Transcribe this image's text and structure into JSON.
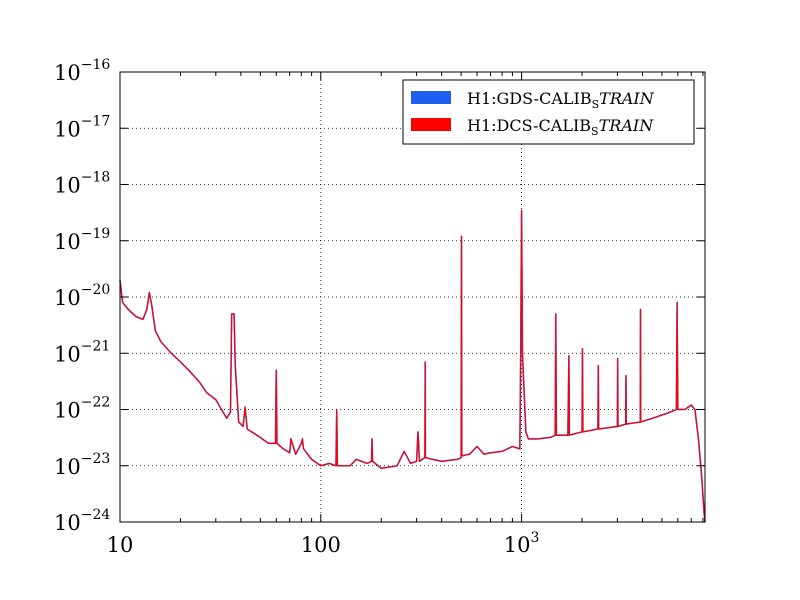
{
  "chart_data": {
    "type": "line",
    "title": "",
    "xlabel": "",
    "ylabel": "",
    "x_scale": "log",
    "y_scale": "log",
    "xlim": [
      10,
      8192
    ],
    "ylim": [
      1e-24,
      1e-16
    ],
    "grid": true,
    "legend_position": "top-right",
    "colors": {
      "gds": "#1f5ff2",
      "dcs": "#ff0000"
    },
    "x_ticks": [
      {
        "value": 10,
        "label": "10",
        "exp": ""
      },
      {
        "value": 100,
        "label": "100",
        "exp": ""
      },
      {
        "value": 1000,
        "label": "10",
        "exp": "3"
      }
    ],
    "y_ticks": [
      {
        "value": 1e-24,
        "label": "10",
        "exp": "−24"
      },
      {
        "value": 1e-23,
        "label": "10",
        "exp": "−23"
      },
      {
        "value": 1e-22,
        "label": "10",
        "exp": "−22"
      },
      {
        "value": 1e-21,
        "label": "10",
        "exp": "−21"
      },
      {
        "value": 1e-20,
        "label": "10",
        "exp": "−20"
      },
      {
        "value": 1e-19,
        "label": "10",
        "exp": "−19"
      },
      {
        "value": 1e-18,
        "label": "10",
        "exp": "−18"
      },
      {
        "value": 1e-17,
        "label": "10",
        "exp": "−17"
      },
      {
        "value": 1e-16,
        "label": "10",
        "exp": "−16"
      }
    ],
    "series": [
      {
        "name": "H1:GDS-CALIB_STRAIN",
        "legend_base": "H1:GDS-CALIB",
        "legend_sub": "S",
        "legend_ital": "TRAIN",
        "color": "#1f5ff2",
        "points": [
          [
            10,
            2e-20
          ],
          [
            10.3,
            8e-21
          ],
          [
            11,
            6e-21
          ],
          [
            12,
            4.5e-21
          ],
          [
            13,
            4e-21
          ],
          [
            13.6,
            6e-21
          ],
          [
            14,
            1.2e-20
          ],
          [
            14.4,
            7e-21
          ],
          [
            15,
            2.5e-21
          ],
          [
            16,
            1.6e-21
          ],
          [
            18,
            1e-21
          ],
          [
            20,
            7e-22
          ],
          [
            22,
            5e-22
          ],
          [
            25,
            3e-22
          ],
          [
            27,
            2e-22
          ],
          [
            30,
            1.5e-22
          ],
          [
            32,
            1e-22
          ],
          [
            34,
            7e-23
          ],
          [
            35.5,
            9e-23
          ],
          [
            36,
            5e-21
          ],
          [
            37,
            5e-21
          ],
          [
            37.5,
            6e-22
          ],
          [
            39,
            6e-23
          ],
          [
            41,
            5e-23
          ],
          [
            42,
            1.1e-22
          ],
          [
            43,
            4.5e-23
          ],
          [
            48,
            3.5e-23
          ],
          [
            55,
            2.5e-23
          ],
          [
            59.5,
            2.5e-23
          ],
          [
            60,
            5e-22
          ],
          [
            60.5,
            2.5e-23
          ],
          [
            65,
            2e-23
          ],
          [
            70,
            1.7e-23
          ],
          [
            71,
            3e-23
          ],
          [
            75,
            1.6e-23
          ],
          [
            80,
            2.5e-23
          ],
          [
            81,
            3e-23
          ],
          [
            82,
            2e-23
          ],
          [
            90,
            1.3e-23
          ],
          [
            100,
            1e-23
          ],
          [
            110,
            1.1e-23
          ],
          [
            119,
            1e-23
          ],
          [
            120,
            1e-22
          ],
          [
            121,
            1e-23
          ],
          [
            140,
            1e-23
          ],
          [
            150,
            1.3e-23
          ],
          [
            170,
            1.1e-23
          ],
          [
            179,
            1.2e-23
          ],
          [
            180,
            3e-23
          ],
          [
            181,
            1.2e-23
          ],
          [
            200,
            9e-24
          ],
          [
            240,
            1e-23
          ],
          [
            260,
            1.8e-23
          ],
          [
            280,
            1.1e-23
          ],
          [
            300,
            1.2e-23
          ],
          [
            305,
            4e-23
          ],
          [
            310,
            1.2e-23
          ],
          [
            330,
            1.4e-23
          ],
          [
            331,
            7e-22
          ],
          [
            332,
            1.4e-23
          ],
          [
            360,
            1.3e-23
          ],
          [
            400,
            1.2e-23
          ],
          [
            480,
            1.3e-23
          ],
          [
            500,
            1.4e-23
          ],
          [
            502,
            1.2e-19
          ],
          [
            504,
            1.5e-23
          ],
          [
            550,
            1.6e-23
          ],
          [
            600,
            2.2e-23
          ],
          [
            650,
            1.6e-23
          ],
          [
            700,
            1.7e-23
          ],
          [
            800,
            1.8e-23
          ],
          [
            900,
            2.2e-23
          ],
          [
            980,
            2e-23
          ],
          [
            990,
            1e-21
          ],
          [
            1000,
            3.5e-19
          ],
          [
            1010,
            1e-21
          ],
          [
            1050,
            4e-23
          ],
          [
            1080,
            3e-23
          ],
          [
            1200,
            3e-23
          ],
          [
            1400,
            3.2e-23
          ],
          [
            1470,
            3.5e-23
          ],
          [
            1480,
            5e-21
          ],
          [
            1490,
            3.5e-23
          ],
          [
            1700,
            3.5e-23
          ],
          [
            1720,
            9e-22
          ],
          [
            1730,
            3.5e-23
          ],
          [
            2000,
            4e-23
          ],
          [
            2010,
            1.2e-21
          ],
          [
            2020,
            4e-23
          ],
          [
            2400,
            4.5e-23
          ],
          [
            2410,
            6e-22
          ],
          [
            2420,
            4.5e-23
          ],
          [
            3000,
            5e-23
          ],
          [
            3010,
            8e-22
          ],
          [
            3020,
            5e-23
          ],
          [
            3300,
            5.5e-23
          ],
          [
            3310,
            4e-22
          ],
          [
            3320,
            5.5e-23
          ],
          [
            3900,
            6e-23
          ],
          [
            3910,
            6e-21
          ],
          [
            3920,
            6e-23
          ],
          [
            4500,
            7e-23
          ],
          [
            5000,
            8e-23
          ],
          [
            5500,
            9e-23
          ],
          [
            5900,
            1e-22
          ],
          [
            5950,
            8e-21
          ],
          [
            6000,
            1e-22
          ],
          [
            6500,
            1e-22
          ],
          [
            7000,
            1.2e-22
          ],
          [
            7300,
            1e-22
          ],
          [
            7600,
            3e-23
          ],
          [
            7900,
            6e-24
          ],
          [
            8100,
            1.5e-24
          ],
          [
            8192,
            1e-24
          ]
        ]
      },
      {
        "name": "H1:DCS-CALIB_STRAIN",
        "legend_base": "H1:DCS-CALIB",
        "legend_sub": "S",
        "legend_ital": "TRAIN",
        "color": "#ff0000",
        "points": [
          [
            10,
            2e-20
          ],
          [
            10.3,
            8e-21
          ],
          [
            11,
            6e-21
          ],
          [
            12,
            4.5e-21
          ],
          [
            13,
            4e-21
          ],
          [
            13.6,
            6e-21
          ],
          [
            14,
            1.2e-20
          ],
          [
            14.4,
            7e-21
          ],
          [
            15,
            2.5e-21
          ],
          [
            16,
            1.6e-21
          ],
          [
            18,
            1e-21
          ],
          [
            20,
            7e-22
          ],
          [
            22,
            5e-22
          ],
          [
            25,
            3e-22
          ],
          [
            27,
            2e-22
          ],
          [
            30,
            1.5e-22
          ],
          [
            32,
            1e-22
          ],
          [
            34,
            7e-23
          ],
          [
            35.5,
            9e-23
          ],
          [
            36,
            5e-21
          ],
          [
            37,
            5e-21
          ],
          [
            37.5,
            6e-22
          ],
          [
            39,
            6e-23
          ],
          [
            41,
            5e-23
          ],
          [
            42,
            1.1e-22
          ],
          [
            43,
            4.5e-23
          ],
          [
            48,
            3.5e-23
          ],
          [
            55,
            2.5e-23
          ],
          [
            59.5,
            2.5e-23
          ],
          [
            60,
            5e-22
          ],
          [
            60.5,
            2.5e-23
          ],
          [
            65,
            2e-23
          ],
          [
            70,
            1.7e-23
          ],
          [
            71,
            3e-23
          ],
          [
            75,
            1.6e-23
          ],
          [
            80,
            2.5e-23
          ],
          [
            81,
            3e-23
          ],
          [
            82,
            2e-23
          ],
          [
            90,
            1.3e-23
          ],
          [
            100,
            1e-23
          ],
          [
            110,
            1.1e-23
          ],
          [
            119,
            1e-23
          ],
          [
            120,
            1e-22
          ],
          [
            121,
            1e-23
          ],
          [
            140,
            1e-23
          ],
          [
            150,
            1.3e-23
          ],
          [
            170,
            1.1e-23
          ],
          [
            179,
            1.2e-23
          ],
          [
            180,
            3e-23
          ],
          [
            181,
            1.2e-23
          ],
          [
            200,
            9e-24
          ],
          [
            240,
            1e-23
          ],
          [
            260,
            1.8e-23
          ],
          [
            280,
            1.1e-23
          ],
          [
            300,
            1.2e-23
          ],
          [
            305,
            4e-23
          ],
          [
            310,
            1.2e-23
          ],
          [
            330,
            1.4e-23
          ],
          [
            331,
            7e-22
          ],
          [
            332,
            1.4e-23
          ],
          [
            360,
            1.3e-23
          ],
          [
            400,
            1.2e-23
          ],
          [
            480,
            1.3e-23
          ],
          [
            500,
            1.4e-23
          ],
          [
            502,
            1.2e-19
          ],
          [
            504,
            1.5e-23
          ],
          [
            550,
            1.6e-23
          ],
          [
            600,
            2.2e-23
          ],
          [
            650,
            1.6e-23
          ],
          [
            700,
            1.7e-23
          ],
          [
            800,
            1.8e-23
          ],
          [
            900,
            2.2e-23
          ],
          [
            980,
            2e-23
          ],
          [
            990,
            1e-21
          ],
          [
            1000,
            3.5e-19
          ],
          [
            1010,
            1e-21
          ],
          [
            1050,
            4e-23
          ],
          [
            1080,
            3e-23
          ],
          [
            1200,
            3e-23
          ],
          [
            1400,
            3.2e-23
          ],
          [
            1470,
            3.5e-23
          ],
          [
            1480,
            5e-21
          ],
          [
            1490,
            3.5e-23
          ],
          [
            1700,
            3.5e-23
          ],
          [
            1720,
            9e-22
          ],
          [
            1730,
            3.5e-23
          ],
          [
            2000,
            4e-23
          ],
          [
            2010,
            1.2e-21
          ],
          [
            2020,
            4e-23
          ],
          [
            2400,
            4.5e-23
          ],
          [
            2410,
            6e-22
          ],
          [
            2420,
            4.5e-23
          ],
          [
            3000,
            5e-23
          ],
          [
            3010,
            8e-22
          ],
          [
            3020,
            5e-23
          ],
          [
            3300,
            5.5e-23
          ],
          [
            3310,
            4e-22
          ],
          [
            3320,
            5.5e-23
          ],
          [
            3900,
            6e-23
          ],
          [
            3910,
            6e-21
          ],
          [
            3920,
            6e-23
          ],
          [
            4500,
            7e-23
          ],
          [
            5000,
            8e-23
          ],
          [
            5500,
            9e-23
          ],
          [
            5900,
            1e-22
          ],
          [
            5950,
            8e-21
          ],
          [
            6000,
            1e-22
          ],
          [
            6500,
            1e-22
          ],
          [
            7000,
            1.2e-22
          ],
          [
            7300,
            1e-22
          ],
          [
            7600,
            3e-23
          ],
          [
            7900,
            6e-24
          ],
          [
            8100,
            1.5e-24
          ],
          [
            8192,
            1e-24
          ]
        ]
      }
    ]
  }
}
